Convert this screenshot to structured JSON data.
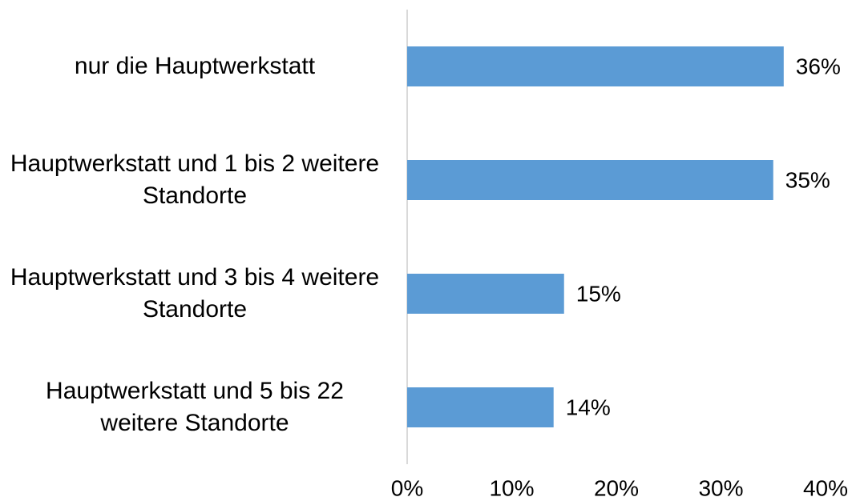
{
  "chart_data": {
    "type": "bar",
    "orientation": "horizontal",
    "categories": [
      "nur die Hauptwerkstatt",
      "Hauptwerkstatt und 1 bis 2 weitere Standorte",
      "Hauptwerkstatt und 3 bis 4 weitere Standorte",
      "Hauptwerkstatt und 5 bis 22 weitere Standorte"
    ],
    "values": [
      36,
      35,
      15,
      14
    ],
    "value_labels": [
      "36%",
      "35%",
      "15%",
      "14%"
    ],
    "color": "#5b9bd5",
    "xlim": [
      0,
      40
    ],
    "xticks": [
      {
        "value": 0,
        "label": "0%"
      },
      {
        "value": 10,
        "label": "10%"
      },
      {
        "value": 20,
        "label": "20%"
      },
      {
        "value": 30,
        "label": "30%"
      },
      {
        "value": 40,
        "label": "40%"
      }
    ],
    "grid": false
  }
}
